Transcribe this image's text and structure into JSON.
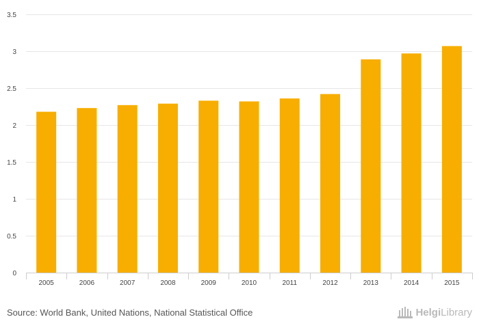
{
  "colors": {
    "bar": "#F7AE00",
    "grid": "#e6e6e6",
    "axis": "#cccccc",
    "tick_text": "#444444"
  },
  "chart_data": {
    "type": "bar",
    "title": "",
    "xlabel": "",
    "ylabel": "",
    "categories": [
      "2005",
      "2006",
      "2007",
      "2008",
      "2009",
      "2010",
      "2011",
      "2012",
      "2013",
      "2014",
      "2015"
    ],
    "values": [
      2.18,
      2.23,
      2.27,
      2.29,
      2.33,
      2.32,
      2.36,
      2.42,
      2.89,
      2.97,
      3.07
    ],
    "ylim": [
      0,
      3.5
    ],
    "yticks": [
      0,
      0.5,
      1,
      1.5,
      2,
      2.5,
      3,
      3.5
    ],
    "ytick_labels": [
      "0",
      "0.5",
      "1",
      "1.5",
      "2",
      "2.5",
      "3",
      "3.5"
    ],
    "grid": true,
    "legend": "none"
  },
  "footer": {
    "source": "Source: World Bank, United Nations, National Statistical Office",
    "brand_part1": "Helgi",
    "brand_part2": "Library",
    "brand_icon": "library-building-icon"
  }
}
